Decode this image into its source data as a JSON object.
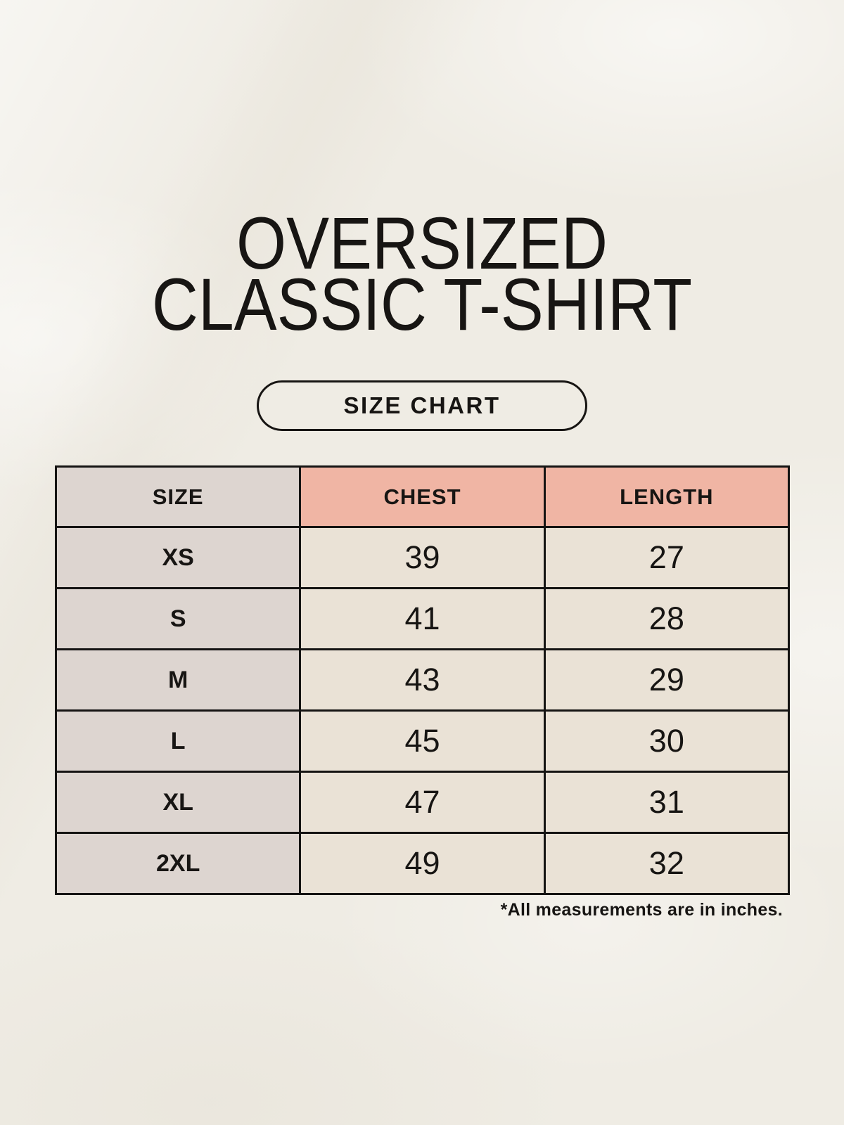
{
  "theme": {
    "bg": "#efece4",
    "ink": "#171513",
    "table_border": "#151413",
    "size_col_bg": "#ddd5d0",
    "measure_header_bg": "#f0b5a4",
    "measure_cell_bg": "#eae2d6"
  },
  "title": {
    "line1": "OVERSIZED",
    "line2": "CLASSIC T-SHIRT"
  },
  "size_chart_button": {
    "label": "SIZE CHART"
  },
  "table": {
    "columns": [
      "SIZE",
      "CHEST",
      "LENGTH"
    ],
    "rows": [
      {
        "size": "XS",
        "chest": "39",
        "length": "27"
      },
      {
        "size": "S",
        "chest": "41",
        "length": "28"
      },
      {
        "size": "M",
        "chest": "43",
        "length": "29"
      },
      {
        "size": "L",
        "chest": "45",
        "length": "30"
      },
      {
        "size": "XL",
        "chest": "47",
        "length": "31"
      },
      {
        "size": "2XL",
        "chest": "49",
        "length": "32"
      }
    ]
  },
  "footnote": "*All measurements are in inches.",
  "chart_data": {
    "type": "table",
    "title": "OVERSIZED CLASSIC T-SHIRT — SIZE CHART",
    "columns": [
      "SIZE",
      "CHEST",
      "LENGTH"
    ],
    "rows": [
      [
        "XS",
        39,
        27
      ],
      [
        "S",
        41,
        28
      ],
      [
        "M",
        43,
        29
      ],
      [
        "L",
        45,
        30
      ],
      [
        "XL",
        47,
        31
      ],
      [
        "2XL",
        49,
        32
      ]
    ],
    "units": "inches"
  }
}
